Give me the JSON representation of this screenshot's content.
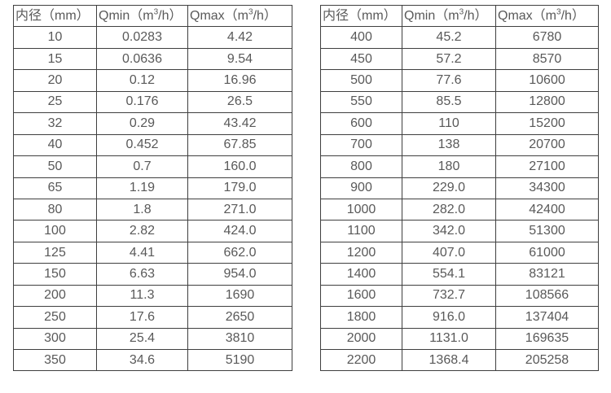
{
  "page": {
    "background": "#ffffff",
    "text_color": "#595959",
    "border_color": "#3f3f3f"
  },
  "tables": [
    {
      "id": "flow-range-table-small",
      "columns": [
        {
          "pre": "内径（mm）",
          "sup": "",
          "post": ""
        },
        {
          "pre": "Qmin（m",
          "sup": "3",
          "post": "/h）"
        },
        {
          "pre": "Qmax（m",
          "sup": "3",
          "post": "/h）"
        }
      ],
      "rows": [
        [
          "10",
          "0.0283",
          "4.42"
        ],
        [
          "15",
          "0.0636",
          "9.54"
        ],
        [
          "20",
          "0.12",
          "16.96"
        ],
        [
          "25",
          "0.176",
          "26.5"
        ],
        [
          "32",
          "0.29",
          "43.42"
        ],
        [
          "40",
          "0.452",
          "67.85"
        ],
        [
          "50",
          "0.7",
          "160.0"
        ],
        [
          "65",
          "1.19",
          "179.0"
        ],
        [
          "80",
          "1.8",
          "271.0"
        ],
        [
          "100",
          "2.82",
          "424.0"
        ],
        [
          "125",
          "4.41",
          "662.0"
        ],
        [
          "150",
          "6.63",
          "954.0"
        ],
        [
          "200",
          "11.3",
          "1690"
        ],
        [
          "250",
          "17.6",
          "2650"
        ],
        [
          "300",
          "25.4",
          "3810"
        ],
        [
          "350",
          "34.6",
          "5190"
        ]
      ]
    },
    {
      "id": "flow-range-table-large",
      "columns": [
        {
          "pre": "内径（mm）",
          "sup": "",
          "post": ""
        },
        {
          "pre": "Qmin（m",
          "sup": "3",
          "post": "/h）"
        },
        {
          "pre": "Qmax（m",
          "sup": "3",
          "post": "/h）"
        }
      ],
      "rows": [
        [
          "400",
          "45.2",
          "6780"
        ],
        [
          "450",
          "57.2",
          "8570"
        ],
        [
          "500",
          "77.6",
          "10600"
        ],
        [
          "550",
          "85.5",
          "12800"
        ],
        [
          "600",
          "110",
          "15200"
        ],
        [
          "700",
          "138",
          "20700"
        ],
        [
          "800",
          "180",
          "27100"
        ],
        [
          "900",
          "229.0",
          "34300"
        ],
        [
          "1000",
          "282.0",
          "42400"
        ],
        [
          "1100",
          "342.0",
          "51300"
        ],
        [
          "1200",
          "407.0",
          "61000"
        ],
        [
          "1400",
          "554.1",
          "83121"
        ],
        [
          "1600",
          "732.7",
          "108566"
        ],
        [
          "1800",
          "916.0",
          "137404"
        ],
        [
          "2000",
          "1131.0",
          "169635"
        ],
        [
          "2200",
          "1368.4",
          "205258"
        ]
      ]
    }
  ]
}
